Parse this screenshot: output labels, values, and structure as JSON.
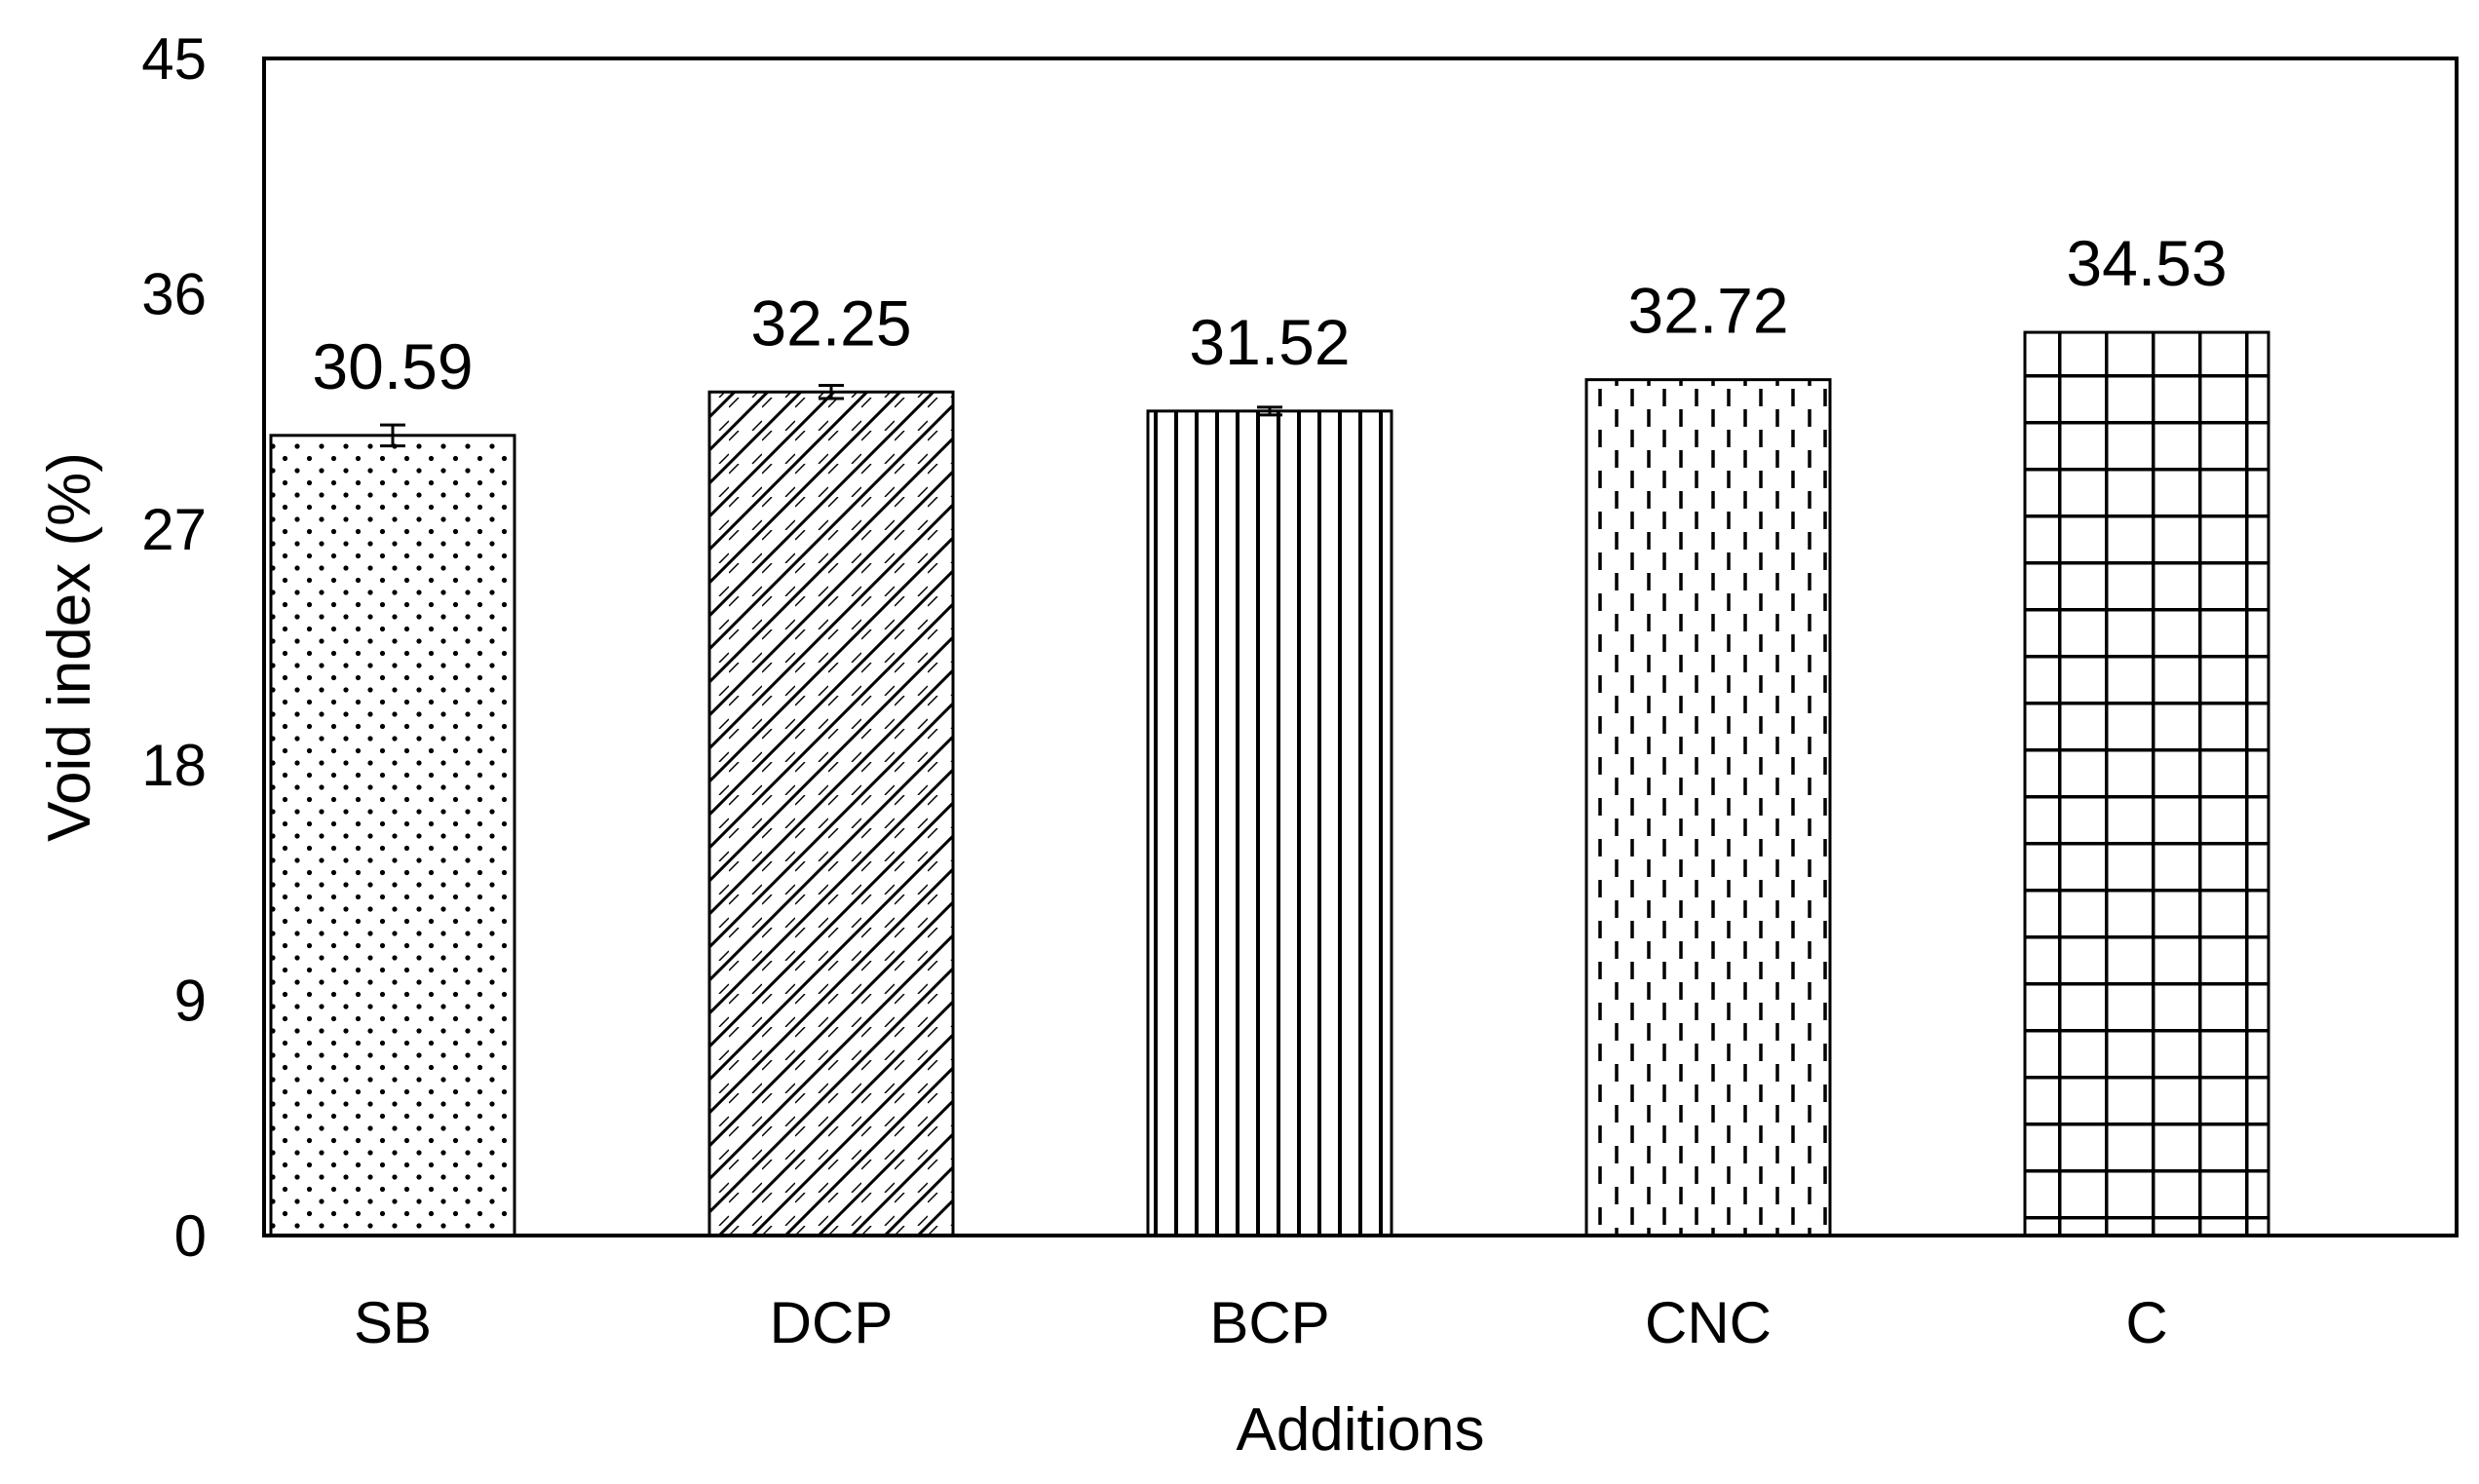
{
  "chart_data": {
    "type": "bar",
    "title": "",
    "xlabel": "Additions",
    "ylabel": "Void index (%)",
    "ylim": [
      0,
      45
    ],
    "yticks": [
      0,
      9,
      18,
      27,
      36,
      45
    ],
    "grid": false,
    "legend": "none",
    "categories": [
      "SB",
      "DCP",
      "BCP",
      "CNC",
      "C"
    ],
    "values": [
      30.59,
      32.25,
      31.52,
      32.72,
      34.53
    ],
    "value_labels": [
      "30.59",
      "32.25",
      "31.52",
      "32.72",
      "34.53"
    ],
    "error": [
      0.4,
      0.25,
      0.15,
      0,
      0
    ],
    "patterns": [
      "dots",
      "diagonal-hatch",
      "vertical-lines",
      "dashed-vertical",
      "grid"
    ],
    "colors": {
      "bar_outline": "#000000",
      "bar_fill": "#ffffff",
      "pattern": "#000000"
    }
  }
}
